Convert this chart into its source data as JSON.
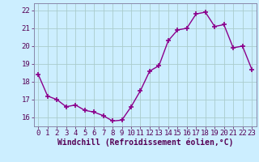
{
  "x": [
    0,
    1,
    2,
    3,
    4,
    5,
    6,
    7,
    8,
    9,
    10,
    11,
    12,
    13,
    14,
    15,
    16,
    17,
    18,
    19,
    20,
    21,
    22,
    23
  ],
  "y": [
    18.4,
    17.2,
    17.0,
    16.6,
    16.7,
    16.4,
    16.3,
    16.1,
    15.8,
    15.85,
    16.6,
    17.5,
    18.6,
    18.9,
    20.3,
    20.9,
    21.0,
    21.8,
    21.9,
    21.1,
    21.2,
    19.9,
    20.0,
    18.7
  ],
  "line_color": "#8B008B",
  "marker_color": "#8B008B",
  "bg_color": "#cceeff",
  "grid_color": "#aacccc",
  "spine_color": "#8888aa",
  "tick_color": "#550055",
  "xlabel": "Windchill (Refroidissement éolien,°C)",
  "ylim": [
    15.5,
    22.4
  ],
  "yticks": [
    16,
    17,
    18,
    19,
    20,
    21,
    22
  ],
  "xticks": [
    0,
    1,
    2,
    3,
    4,
    5,
    6,
    7,
    8,
    9,
    10,
    11,
    12,
    13,
    14,
    15,
    16,
    17,
    18,
    19,
    20,
    21,
    22,
    23
  ],
  "xlabel_fontsize": 7,
  "tick_fontsize": 6.5,
  "line_width": 1.0,
  "marker_size": 4
}
